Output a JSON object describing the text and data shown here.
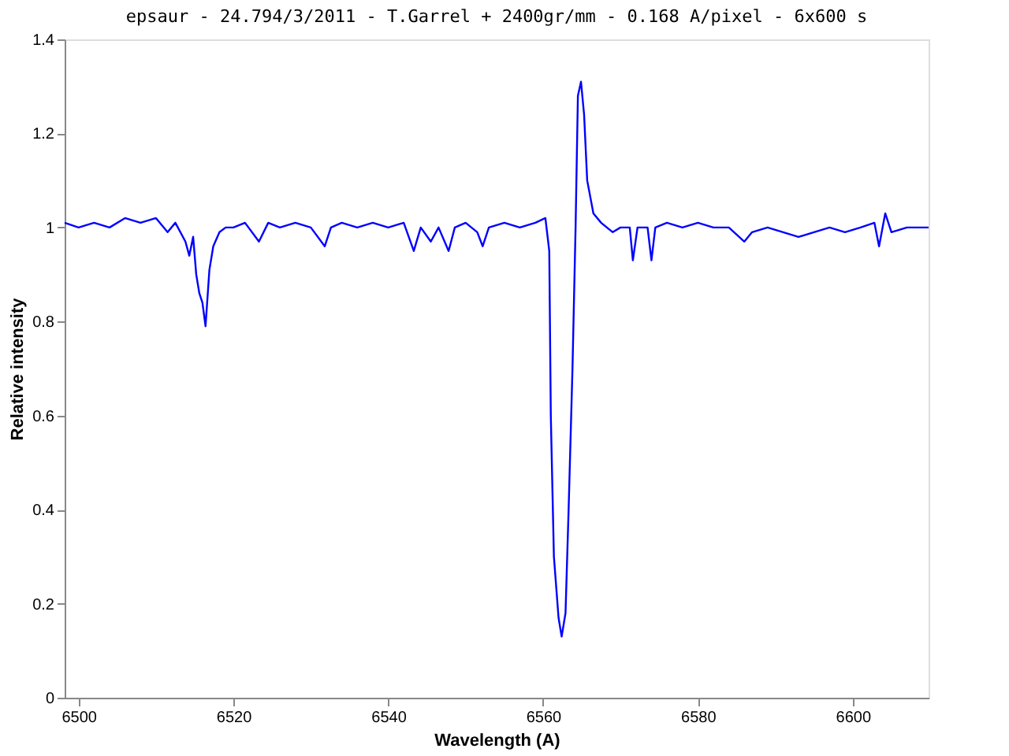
{
  "chart_data": {
    "type": "line",
    "title": "epsaur - 24.794/3/2011 - T.Garrel + 2400gr/mm - 0.168 A/pixel - 6x600 s",
    "xlabel": "Wavelength (A)",
    "ylabel": "Relative intensity",
    "xlim": [
      6498.2,
      6609.8
    ],
    "xticks": [
      6500,
      6520,
      6540,
      6560,
      6580,
      6600
    ],
    "ylim": [
      0,
      1.4
    ],
    "yticks": [
      0,
      0.2,
      0.4,
      0.6,
      0.8,
      1,
      1.2,
      1.4
    ],
    "grid": false,
    "series": [
      {
        "color": "#0000ff",
        "x": [
          6498.2,
          6500,
          6502,
          6504,
          6506,
          6508,
          6510,
          6511.5,
          6512.5,
          6513.8,
          6514.3,
          6514.8,
          6515.2,
          6515.6,
          6516.0,
          6516.4,
          6516.9,
          6517.4,
          6518.2,
          6519,
          6520,
          6521.5,
          6523.3,
          6524.5,
          6526,
          6528,
          6530,
          6531.8,
          6532.6,
          6534,
          6536,
          6538,
          6540,
          6542,
          6543.3,
          6544.2,
          6545.5,
          6546.5,
          6547.8,
          6548.6,
          6550,
          6551.5,
          6552.2,
          6553,
          6555,
          6557,
          6559,
          6560.3,
          6560.8,
          6561.0,
          6561.4,
          6562.0,
          6562.4,
          6562.9,
          6563.3,
          6563.8,
          6564.2,
          6564.5,
          6564.9,
          6565.3,
          6565.7,
          6566.5,
          6567.5,
          6569,
          6570,
          6571.2,
          6571.6,
          6572.2,
          6573.5,
          6574.0,
          6574.5,
          6576,
          6578,
          6580,
          6582,
          6584,
          6586,
          6587,
          6589,
          6591,
          6593,
          6595,
          6597,
          6599,
          6601,
          6602.8,
          6603.4,
          6604.2,
          6605,
          6607,
          6609.8
        ],
        "values": [
          1.01,
          1.0,
          1.01,
          1.0,
          1.02,
          1.01,
          1.02,
          0.99,
          1.01,
          0.97,
          0.94,
          0.98,
          0.9,
          0.86,
          0.84,
          0.79,
          0.91,
          0.96,
          0.99,
          1.0,
          1.0,
          1.01,
          0.97,
          1.01,
          1.0,
          1.01,
          1.0,
          0.96,
          1.0,
          1.01,
          1.0,
          1.01,
          1.0,
          1.01,
          0.95,
          1.0,
          0.97,
          1.0,
          0.95,
          1.0,
          1.01,
          0.99,
          0.96,
          1.0,
          1.01,
          1.0,
          1.01,
          1.02,
          0.95,
          0.6,
          0.3,
          0.17,
          0.13,
          0.18,
          0.4,
          0.7,
          1.0,
          1.28,
          1.31,
          1.24,
          1.1,
          1.03,
          1.01,
          0.99,
          1.0,
          1.0,
          0.93,
          1.0,
          1.0,
          0.93,
          1.0,
          1.01,
          1.0,
          1.01,
          1.0,
          1.0,
          0.97,
          0.99,
          1.0,
          0.99,
          0.98,
          0.99,
          1.0,
          0.99,
          1.0,
          1.01,
          0.96,
          1.03,
          0.99,
          1.0,
          1.0
        ]
      }
    ]
  }
}
